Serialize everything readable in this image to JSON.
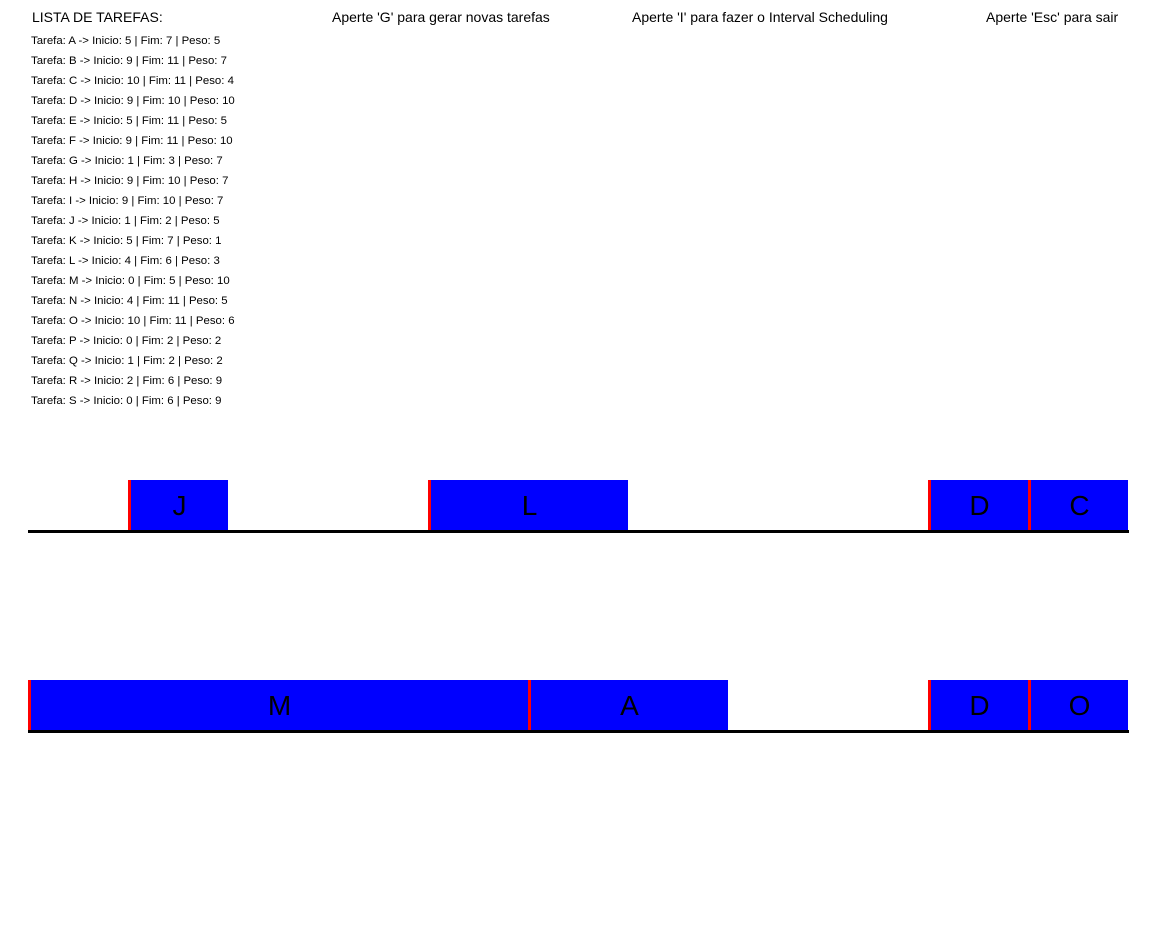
{
  "header": {
    "list_title": "LISTA DE TAREFAS:",
    "hint_generate": "Aperte 'G' para gerar novas tarefas",
    "hint_interval": "Aperte 'I' para fazer o Interval Scheduling",
    "hint_exit": "Aperte 'Esc' para sair"
  },
  "tasks": [
    {
      "text": "Tarefa: A -> Inicio: 5 | Fim: 7 | Peso: 5"
    },
    {
      "text": "Tarefa: B -> Inicio: 9 | Fim: 11 | Peso: 7"
    },
    {
      "text": "Tarefa: C -> Inicio: 10 | Fim: 11 | Peso: 4"
    },
    {
      "text": "Tarefa: D -> Inicio: 9 | Fim: 10 | Peso: 10"
    },
    {
      "text": "Tarefa: E -> Inicio: 5 | Fim: 11 | Peso: 5"
    },
    {
      "text": "Tarefa: F -> Inicio: 9 | Fim: 11 | Peso: 10"
    },
    {
      "text": "Tarefa: G -> Inicio: 1 | Fim: 3 | Peso: 7"
    },
    {
      "text": "Tarefa: H -> Inicio: 9 | Fim: 10 | Peso: 7"
    },
    {
      "text": "Tarefa: I -> Inicio: 9 | Fim: 10 | Peso: 7"
    },
    {
      "text": "Tarefa: J -> Inicio: 1 | Fim: 2 | Peso: 5"
    },
    {
      "text": "Tarefa: K -> Inicio: 5 | Fim: 7 | Peso: 1"
    },
    {
      "text": "Tarefa: L -> Inicio: 4 | Fim: 6 | Peso: 3"
    },
    {
      "text": "Tarefa: M -> Inicio: 0 | Fim: 5 | Peso: 10"
    },
    {
      "text": "Tarefa: N -> Inicio: 4 | Fim: 11 | Peso: 5"
    },
    {
      "text": "Tarefa: O -> Inicio: 10 | Fim: 11 | Peso: 6"
    },
    {
      "text": "Tarefa: P -> Inicio: 0 | Fim: 2 | Peso: 2"
    },
    {
      "text": "Tarefa: Q -> Inicio: 1 | Fim: 2 | Peso: 2"
    },
    {
      "text": "Tarefa: R -> Inicio: 2 | Fim: 6 | Peso: 9"
    },
    {
      "text": "Tarefa: S -> Inicio: 0 | Fim: 6 | Peso: 9"
    }
  ],
  "timelines": [
    {
      "blocks": [
        {
          "label": "J",
          "start": 1,
          "end": 2
        },
        {
          "label": "L",
          "start": 4,
          "end": 6
        },
        {
          "label": "D",
          "start": 9,
          "end": 10
        },
        {
          "label": "C",
          "start": 10,
          "end": 11
        }
      ]
    },
    {
      "blocks": [
        {
          "label": "M",
          "start": 0,
          "end": 5
        },
        {
          "label": "A",
          "start": 5,
          "end": 7
        },
        {
          "label": "D",
          "start": 9,
          "end": 10
        },
        {
          "label": "O",
          "start": 10,
          "end": 11
        }
      ]
    }
  ],
  "colors": {
    "block_fill": "#0000ff",
    "block_edge": "#ff0000",
    "baseline": "#000000",
    "background": "#ffffff"
  }
}
